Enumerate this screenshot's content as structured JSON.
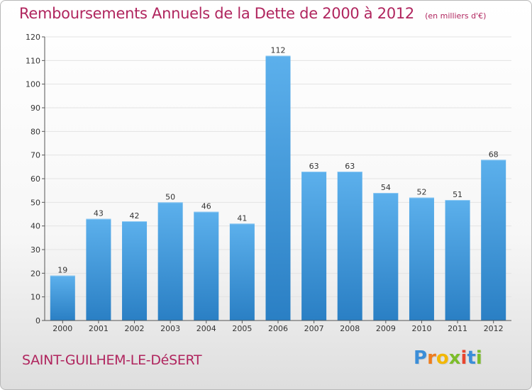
{
  "title": "Remboursements Annuels de la Dette de 2000 à 2012",
  "unit": "(en milliers d'€)",
  "commune": "SAINT-GUILHEM-LE-DéSERT",
  "logo": {
    "letters": [
      "P",
      "r",
      "o",
      "x",
      "i",
      "t",
      "i"
    ],
    "colors": [
      "#3b8ed8",
      "#ee7d1e",
      "#f2b705",
      "#7cbd2a",
      "#e8452f",
      "#3b8ed8",
      "#7cbd2a"
    ]
  },
  "colors": {
    "bar_top": "#5cb0ec",
    "bar_bottom": "#2a7fc4",
    "axis": "#555555",
    "grid": "#e3e3e3",
    "text": "#333333",
    "accent": "#b0255e"
  },
  "chart_data": {
    "type": "bar",
    "categories": [
      "2000",
      "2001",
      "2002",
      "2003",
      "2004",
      "2005",
      "2006",
      "2007",
      "2008",
      "2009",
      "2010",
      "2011",
      "2012"
    ],
    "values": [
      19,
      43,
      42,
      50,
      46,
      41,
      112,
      63,
      63,
      54,
      52,
      51,
      68
    ],
    "ylim": [
      0,
      120
    ],
    "yticks": [
      0,
      10,
      20,
      30,
      40,
      50,
      60,
      70,
      80,
      90,
      100,
      110,
      120
    ],
    "grid": true,
    "data_labels": true
  }
}
